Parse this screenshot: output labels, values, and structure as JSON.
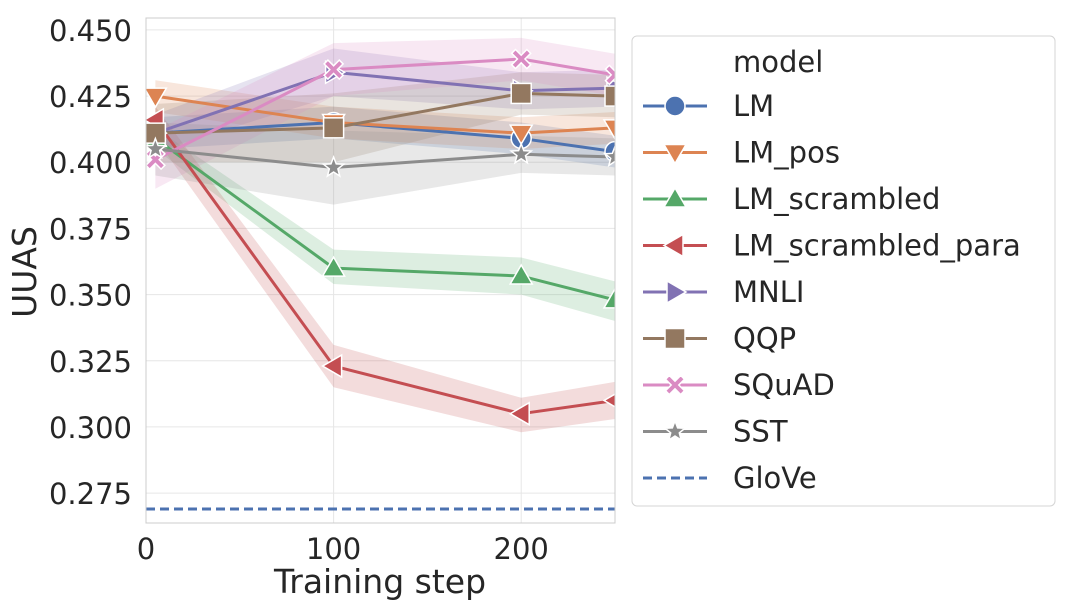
{
  "chart_data": {
    "type": "line",
    "xlabel": "Training step",
    "ylabel": "UUAS",
    "xlim": [
      0,
      250
    ],
    "ylim": [
      0.2637,
      0.4545
    ],
    "xticks": [
      "0",
      "100",
      "200"
    ],
    "yticks": [
      "0.275",
      "0.300",
      "0.325",
      "0.350",
      "0.375",
      "0.400",
      "0.425",
      "0.450"
    ],
    "grid": true,
    "legend_position": "right, outside plot",
    "legend_title": "model",
    "series": [
      {
        "name": "LM",
        "color": "#4c72b0",
        "marker": "circle",
        "x": [
          5,
          100,
          200,
          250
        ],
        "y": [
          0.411,
          0.415,
          0.409,
          0.404
        ],
        "lo": [
          0.405,
          0.409,
          0.403,
          0.398
        ],
        "hi": [
          0.417,
          0.421,
          0.415,
          0.41
        ]
      },
      {
        "name": "LM_pos",
        "color": "#dd8452",
        "marker": "triangle-down",
        "x": [
          5,
          100,
          200,
          250
        ],
        "y": [
          0.425,
          0.415,
          0.411,
          0.413
        ],
        "lo": [
          0.419,
          0.409,
          0.405,
          0.407
        ],
        "hi": [
          0.431,
          0.421,
          0.417,
          0.419
        ]
      },
      {
        "name": "LM_scrambled",
        "color": "#55a868",
        "marker": "triangle-up",
        "x": [
          5,
          100,
          200,
          250
        ],
        "y": [
          0.409,
          0.36,
          0.357,
          0.348
        ],
        "lo": [
          0.405,
          0.354,
          0.35,
          0.34
        ],
        "hi": [
          0.413,
          0.367,
          0.364,
          0.355
        ]
      },
      {
        "name": "LM_scrambled_para",
        "color": "#c44e52",
        "marker": "triangle-left",
        "x": [
          5,
          100,
          200,
          250
        ],
        "y": [
          0.416,
          0.323,
          0.305,
          0.31
        ],
        "lo": [
          0.409,
          0.315,
          0.298,
          0.303
        ],
        "hi": [
          0.421,
          0.331,
          0.311,
          0.317
        ]
      },
      {
        "name": "MNLI",
        "color": "#8172b3",
        "marker": "triangle-right",
        "x": [
          5,
          100,
          200,
          250
        ],
        "y": [
          0.411,
          0.434,
          0.427,
          0.428
        ],
        "lo": [
          0.404,
          0.425,
          0.42,
          0.421
        ],
        "hi": [
          0.418,
          0.443,
          0.434,
          0.435
        ]
      },
      {
        "name": "QQP",
        "color": "#937860",
        "marker": "square",
        "x": [
          5,
          100,
          200,
          250
        ],
        "y": [
          0.411,
          0.413,
          0.426,
          0.425
        ],
        "lo": [
          0.4,
          0.4,
          0.418,
          0.417
        ],
        "hi": [
          0.422,
          0.426,
          0.434,
          0.433
        ]
      },
      {
        "name": "SQuAD",
        "color": "#da8bc3",
        "marker": "x",
        "x": [
          5,
          100,
          200,
          250
        ],
        "y": [
          0.401,
          0.435,
          0.439,
          0.433
        ],
        "lo": [
          0.39,
          0.425,
          0.431,
          0.425
        ],
        "hi": [
          0.412,
          0.445,
          0.447,
          0.441
        ]
      },
      {
        "name": "SST",
        "color": "#8c8c8c",
        "marker": "star",
        "x": [
          5,
          100,
          200,
          250
        ],
        "y": [
          0.405,
          0.398,
          0.403,
          0.402
        ],
        "lo": [
          0.395,
          0.384,
          0.396,
          0.395
        ],
        "hi": [
          0.415,
          0.412,
          0.41,
          0.409
        ]
      },
      {
        "name": "GloVe",
        "color": "#4c72b0",
        "marker": "none",
        "dashed": true,
        "x": [
          0,
          250
        ],
        "y": [
          0.269,
          0.269
        ]
      }
    ]
  }
}
